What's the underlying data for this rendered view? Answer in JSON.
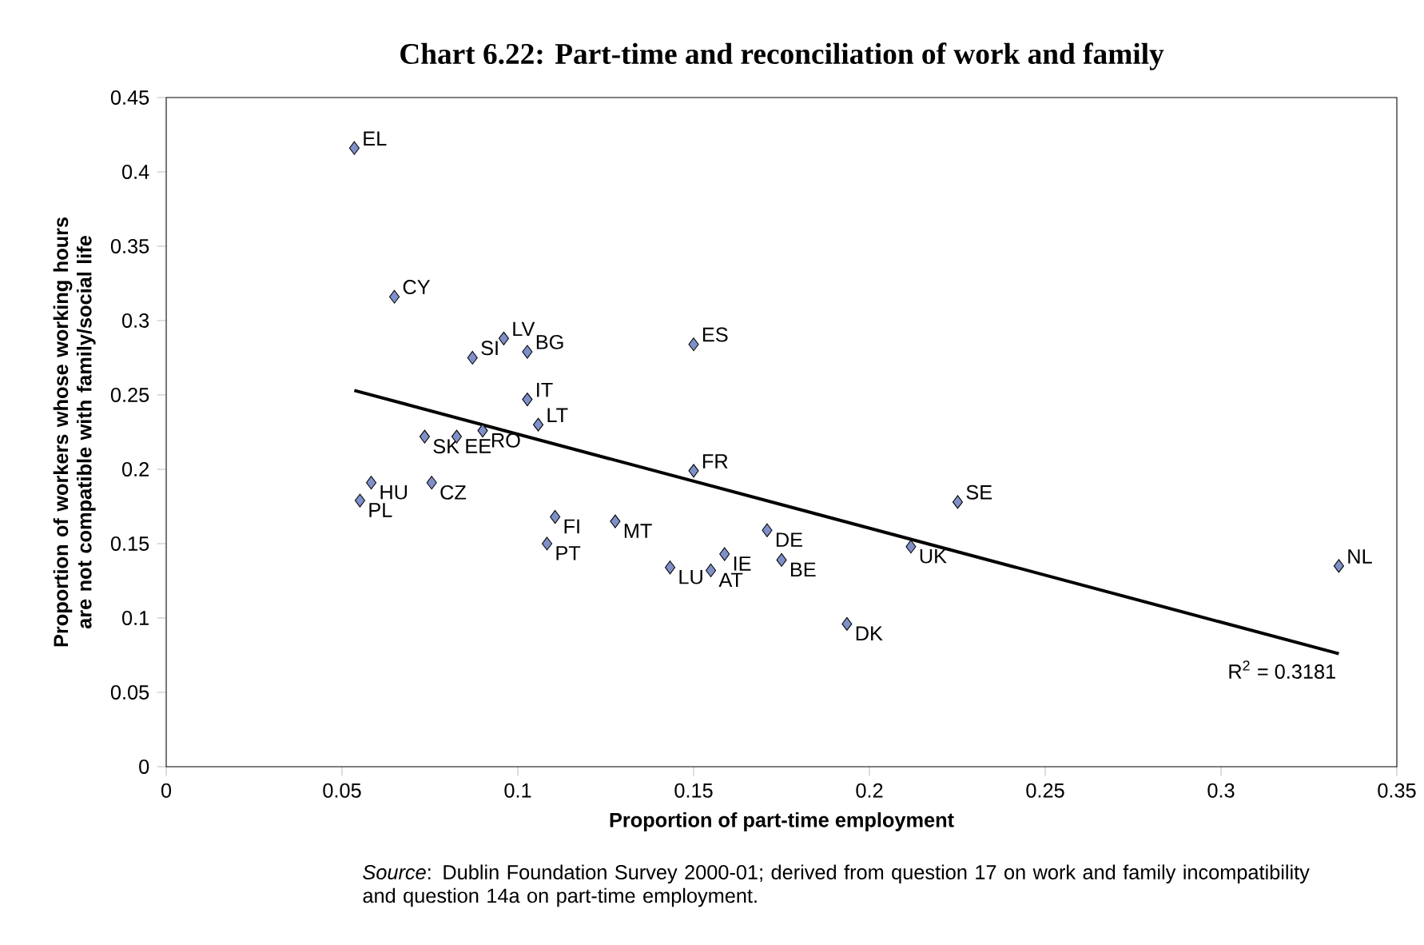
{
  "chart_data": {
    "type": "scatter",
    "title": "Chart 6.22: Part-time and reconciliation of work and family",
    "xlabel": "Proportion of part-time employment",
    "ylabel": "Proportion of workers whose working hours are not compatible with family/social life",
    "xlim": [
      0,
      0.35
    ],
    "ylim": [
      0,
      0.45
    ],
    "xticks": [
      0,
      0.05,
      0.1,
      0.15,
      0.2,
      0.25,
      0.3,
      0.35
    ],
    "yticks": [
      0,
      0.05,
      0.1,
      0.15,
      0.2,
      0.25,
      0.3,
      0.35,
      0.4,
      0.45
    ],
    "grid": false,
    "series": [
      {
        "marker": "diamond",
        "color": "#7f8fc8",
        "x": [
          0.0535,
          0.0649,
          0.096,
          0.1027,
          0.0871,
          0.1027,
          0.1058,
          0.0735,
          0.0826,
          0.09,
          0.0583,
          0.0551,
          0.0755,
          0.15,
          0.15,
          0.2251,
          0.1106,
          0.1277,
          0.1709,
          0.1083,
          0.1433,
          0.1549,
          0.1588,
          0.175,
          0.2118,
          0.1936,
          0.3335
        ],
        "values": [
          0.416,
          0.316,
          0.288,
          0.279,
          0.275,
          0.247,
          0.23,
          0.222,
          0.222,
          0.226,
          0.191,
          0.179,
          0.191,
          0.284,
          0.199,
          0.178,
          0.168,
          0.165,
          0.159,
          0.15,
          0.134,
          0.132,
          0.143,
          0.139,
          0.148,
          0.096,
          0.135
        ]
      },
      {
        "type": "line",
        "color": "#000000",
        "x": [
          0.0535,
          0.3335
        ],
        "values": [
          0.253,
          0.076
        ]
      }
    ],
    "annotations": [
      {
        "text": "EL",
        "x": 0.0535,
        "y": 0.416
      },
      {
        "text": "CY",
        "x": 0.0649,
        "y": 0.316
      },
      {
        "text": "LV",
        "x": 0.096,
        "y": 0.288
      },
      {
        "text": "BG",
        "x": 0.1027,
        "y": 0.279
      },
      {
        "text": "SI",
        "x": 0.0871,
        "y": 0.275
      },
      {
        "text": "IT",
        "x": 0.1027,
        "y": 0.247
      },
      {
        "text": "LT",
        "x": 0.1058,
        "y": 0.23
      },
      {
        "text": "SK",
        "x": 0.0735,
        "y": 0.222
      },
      {
        "text": "EE",
        "x": 0.0826,
        "y": 0.222
      },
      {
        "text": "RO",
        "x": 0.09,
        "y": 0.226
      },
      {
        "text": "HU",
        "x": 0.0583,
        "y": 0.191
      },
      {
        "text": "PL",
        "x": 0.0551,
        "y": 0.179
      },
      {
        "text": "CZ",
        "x": 0.0755,
        "y": 0.191
      },
      {
        "text": "ES",
        "x": 0.15,
        "y": 0.284
      },
      {
        "text": "FR",
        "x": 0.15,
        "y": 0.199
      },
      {
        "text": "SE",
        "x": 0.2251,
        "y": 0.178
      },
      {
        "text": "FI",
        "x": 0.1106,
        "y": 0.168
      },
      {
        "text": "MT",
        "x": 0.1277,
        "y": 0.165
      },
      {
        "text": "DE",
        "x": 0.1709,
        "y": 0.159
      },
      {
        "text": "PT",
        "x": 0.1083,
        "y": 0.15
      },
      {
        "text": "LU",
        "x": 0.1433,
        "y": 0.134
      },
      {
        "text": "AT",
        "x": 0.1549,
        "y": 0.132
      },
      {
        "text": "IE",
        "x": 0.1588,
        "y": 0.143
      },
      {
        "text": "BE",
        "x": 0.175,
        "y": 0.139
      },
      {
        "text": "UK",
        "x": 0.2118,
        "y": 0.148
      },
      {
        "text": "DK",
        "x": 0.1936,
        "y": 0.096
      },
      {
        "text": "NL",
        "x": 0.3335,
        "y": 0.135
      },
      {
        "text": "R$^{2}$ = 0.3181",
        "x": 0.3335,
        "y": 0.076
      },
      "*Source*: Dublin Foundation Survey 2000-01; derived from question 17 on work and family incompatibility and question 14a on part-time employment."
    ]
  }
}
